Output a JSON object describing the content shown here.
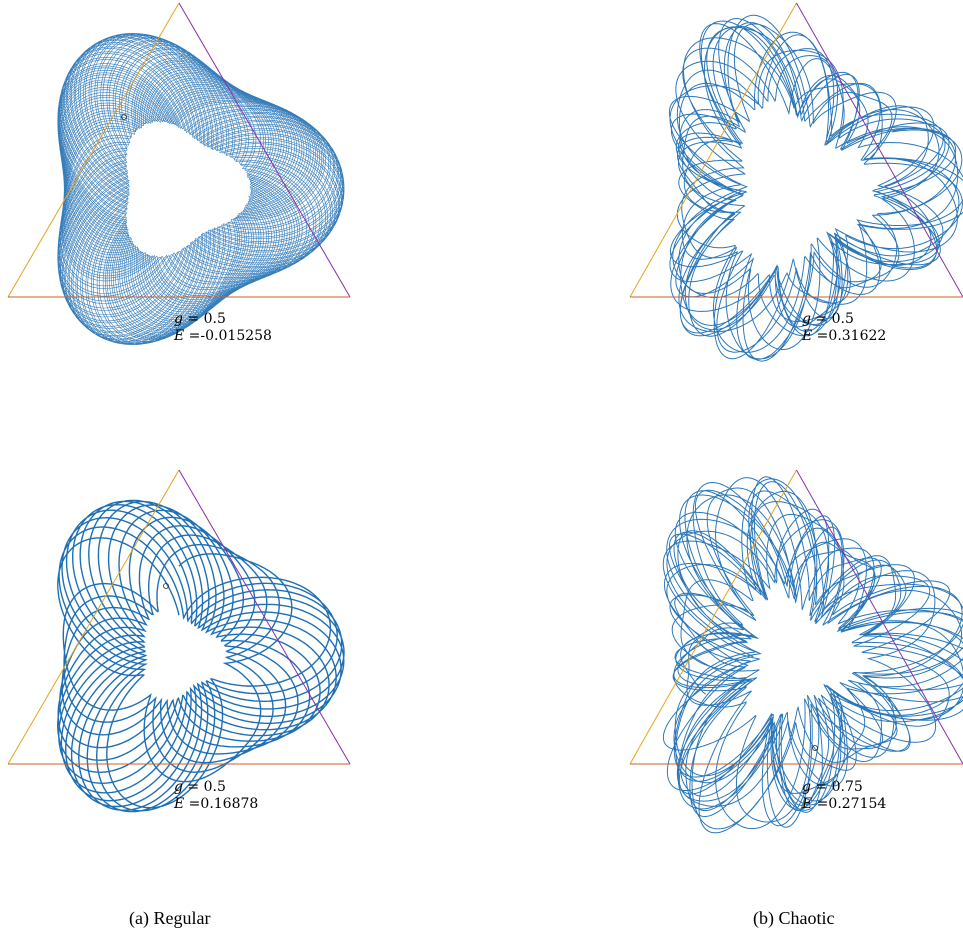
{
  "panels": [
    {
      "id": "regular-top",
      "g_label": "g",
      "g_value": "0.5",
      "e_label": "E",
      "e_value": "-0.015258",
      "kind": "regular-dense"
    },
    {
      "id": "chaotic-top",
      "g_label": "g",
      "g_value": "0.5",
      "e_label": "E",
      "e_value": "0.31622",
      "kind": "chaotic-a"
    },
    {
      "id": "regular-bottom",
      "g_label": "g",
      "g_value": "0.5",
      "e_label": "E",
      "e_value": "0.16878",
      "kind": "regular-sparse"
    },
    {
      "id": "chaotic-bottom",
      "g_label": "g",
      "g_value": "0.75",
      "e_label": "E",
      "e_value": "0.27154",
      "kind": "chaotic-b"
    }
  ],
  "captions": {
    "left": "(a) Regular",
    "right": "(b) Chaotic"
  },
  "colors": {
    "trajectory": "#1f6fb4",
    "left_edge": "#e6a21e",
    "right_edge": "#8a2ea8",
    "bottom_edge": "#c9622c"
  }
}
